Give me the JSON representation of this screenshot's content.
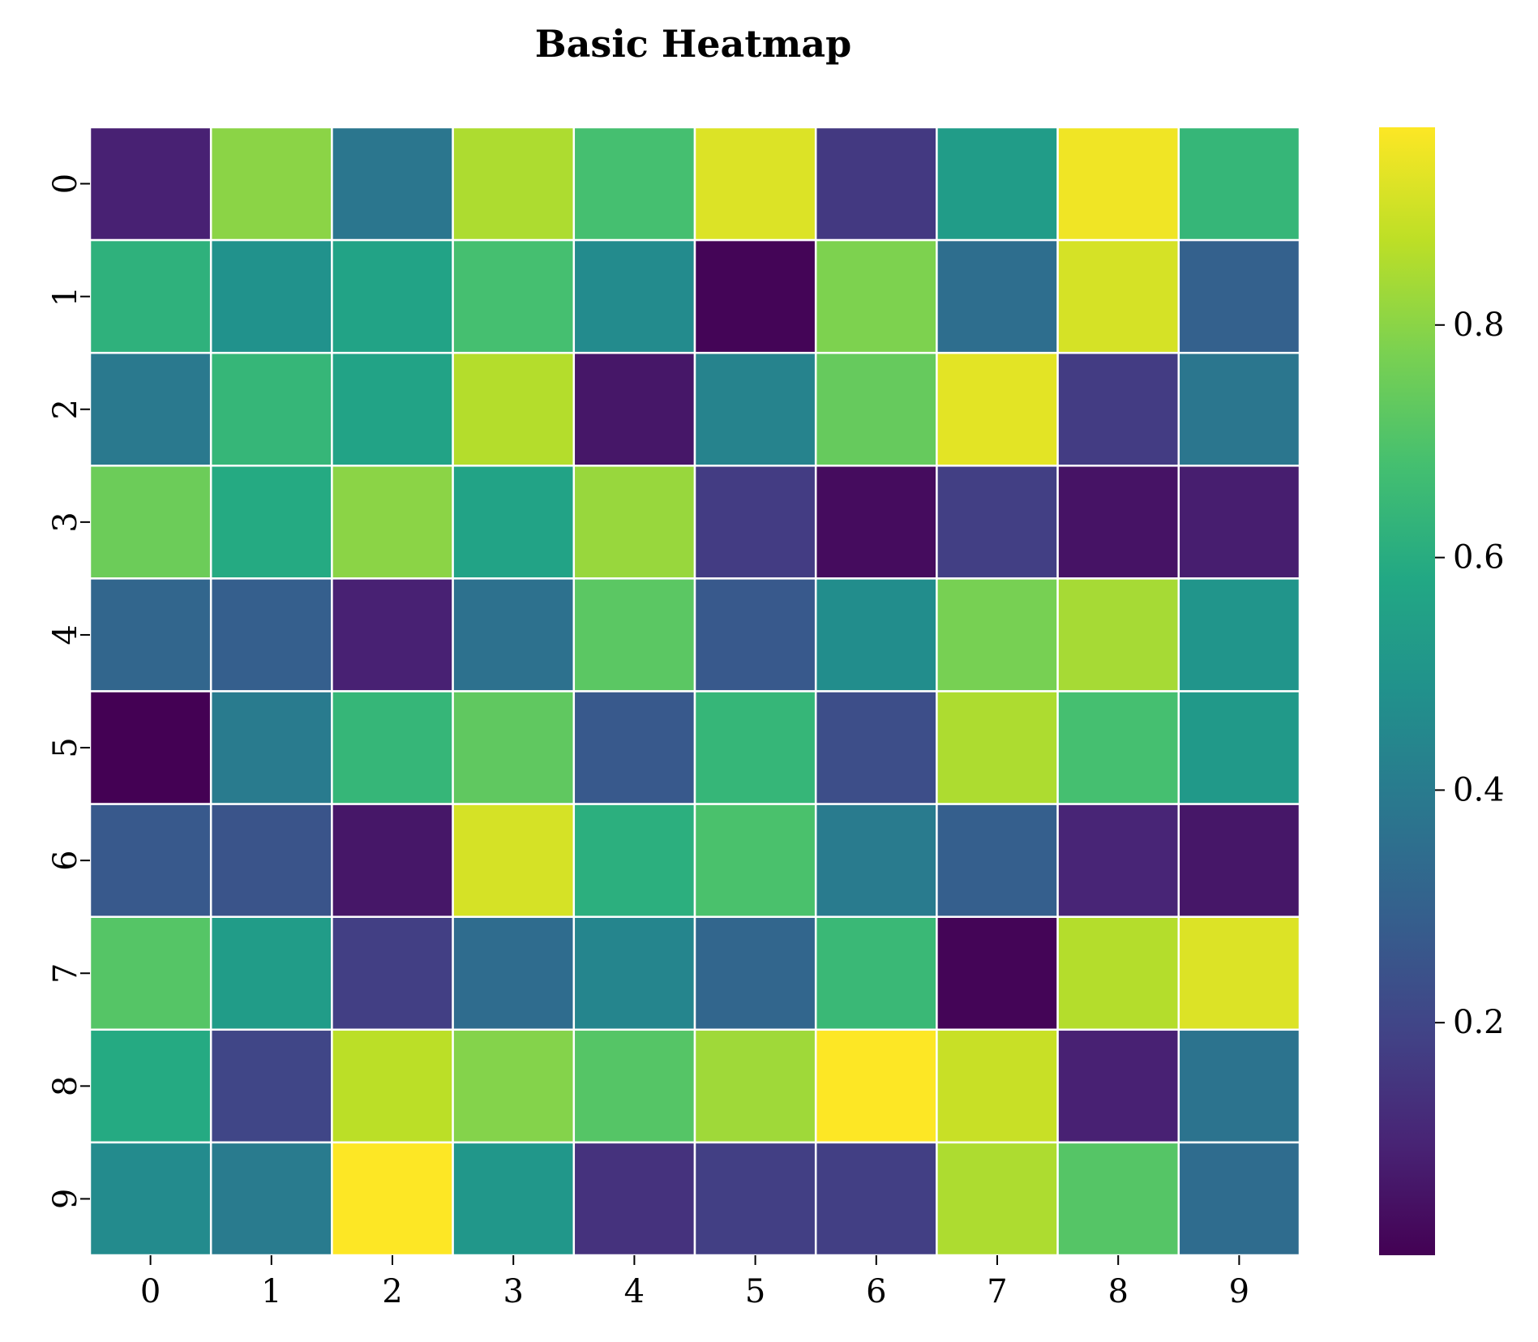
{
  "chart_data": {
    "type": "heatmap",
    "title": "Basic Heatmap",
    "xlabel": "",
    "ylabel": "",
    "x_categories": [
      "0",
      "1",
      "2",
      "3",
      "4",
      "5",
      "6",
      "7",
      "8",
      "9"
    ],
    "y_categories": [
      "0",
      "1",
      "2",
      "3",
      "4",
      "5",
      "6",
      "7",
      "8",
      "9"
    ],
    "values": [
      [
        0.09,
        0.8,
        0.38,
        0.85,
        0.68,
        0.92,
        0.16,
        0.53,
        0.95,
        0.64
      ],
      [
        0.62,
        0.49,
        0.56,
        0.68,
        0.46,
        0.01,
        0.78,
        0.35,
        0.91,
        0.3
      ],
      [
        0.39,
        0.64,
        0.56,
        0.86,
        0.06,
        0.43,
        0.74,
        0.93,
        0.17,
        0.38
      ],
      [
        0.75,
        0.59,
        0.8,
        0.56,
        0.82,
        0.17,
        0.03,
        0.18,
        0.05,
        0.08
      ],
      [
        0.32,
        0.29,
        0.09,
        0.36,
        0.72,
        0.27,
        0.47,
        0.77,
        0.84,
        0.5
      ],
      [
        0.0,
        0.4,
        0.64,
        0.73,
        0.27,
        0.64,
        0.23,
        0.85,
        0.68,
        0.52
      ],
      [
        0.27,
        0.25,
        0.06,
        0.91,
        0.61,
        0.69,
        0.4,
        0.29,
        0.1,
        0.06
      ],
      [
        0.71,
        0.53,
        0.18,
        0.34,
        0.44,
        0.32,
        0.65,
        0.01,
        0.86,
        0.92
      ],
      [
        0.59,
        0.2,
        0.87,
        0.79,
        0.71,
        0.83,
        0.97,
        0.89,
        0.09,
        0.37
      ],
      [
        0.46,
        0.4,
        0.97,
        0.51,
        0.14,
        0.18,
        0.18,
        0.85,
        0.71,
        0.34
      ]
    ],
    "colormap": "viridis",
    "colorbar": {
      "range": [
        0.0,
        0.97
      ],
      "ticks": [
        0.2,
        0.4,
        0.6,
        0.8
      ],
      "tick_labels": [
        "0.2",
        "0.4",
        "0.6",
        "0.8"
      ]
    },
    "grid": false,
    "cell_border_color": "#ffffff",
    "legend": "colorbar-right"
  }
}
